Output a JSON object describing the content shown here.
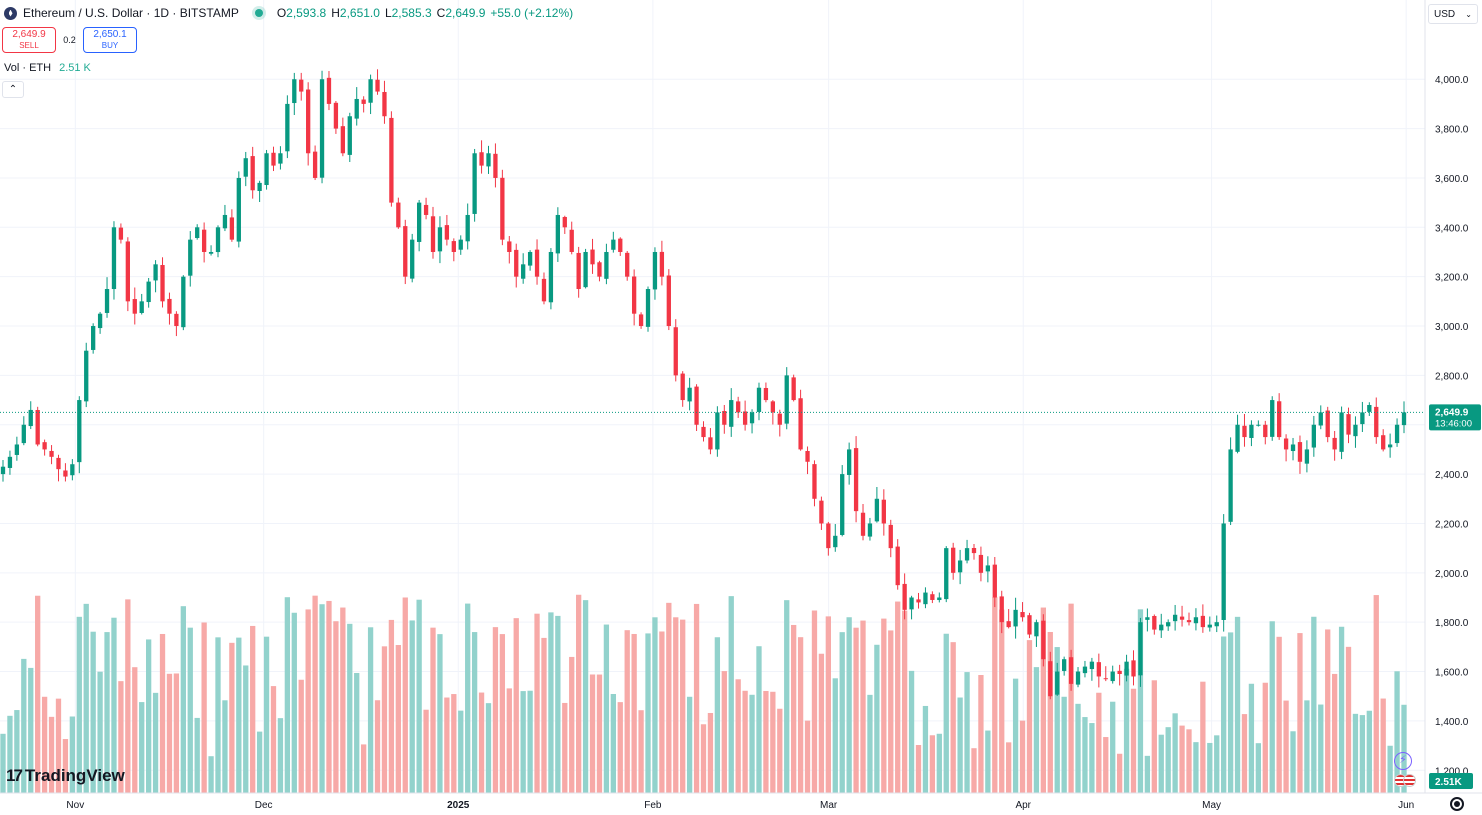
{
  "header": {
    "symbol": "Ethereum / U.S. Dollar · 1D · BITSTAMP",
    "ohlc": {
      "o_label": "O",
      "o": "2,593.8",
      "h_label": "H",
      "h": "2,651.0",
      "l_label": "L",
      "l": "2,585.3",
      "c_label": "C",
      "c": "2,649.9",
      "change": "+55.0 (+2.12%)"
    }
  },
  "trade": {
    "sell_price": "2,649.9",
    "sell_label": "SELL",
    "spread": "0.2",
    "buy_price": "2,650.1",
    "buy_label": "BUY"
  },
  "volume": {
    "label": "Vol · ETH",
    "value": "2.51 K",
    "badge": "2.51K"
  },
  "currency": "USD",
  "branding": "TradingView",
  "price_badge": {
    "price": "2,649.9",
    "countdown": "13:46:00"
  },
  "chart_data": {
    "type": "candlestick",
    "y_axis": {
      "ylim": [
        1120,
        4240
      ],
      "ticks": [
        1200,
        1400,
        1600,
        1800,
        2000,
        2200,
        2400,
        2600,
        2800,
        3000,
        3200,
        3400,
        3600,
        3800,
        4000
      ],
      "tick_labels": [
        "1,200.0",
        "1,400.0",
        "1,600.0",
        "1,800.0",
        "2,000.0",
        "2,200.0",
        "2,400.0",
        "2,600.0",
        "2,800.0",
        "3,000.0",
        "3,200.0",
        "3,400.0",
        "3,600.0",
        "3,800.0",
        "4,000.0"
      ],
      "position": "right"
    },
    "x_axis": {
      "start": "2024-10-20",
      "end": "2025-06-04",
      "labels": [
        {
          "date": "2024-11-01",
          "label": "Nov",
          "bold": false
        },
        {
          "date": "2024-12-01",
          "label": "Dec",
          "bold": false
        },
        {
          "date": "2025-01-01",
          "label": "2025",
          "bold": true
        },
        {
          "date": "2025-02-01",
          "label": "Feb",
          "bold": false
        },
        {
          "date": "2025-03-01",
          "label": "Mar",
          "bold": false
        },
        {
          "date": "2025-04-01",
          "label": "Apr",
          "bold": false
        },
        {
          "date": "2025-05-01",
          "label": "May",
          "bold": false
        },
        {
          "date": "2025-06-01",
          "label": "Jun",
          "bold": false
        }
      ]
    },
    "grid": true,
    "last_price": 2649.9,
    "colors": {
      "up": "#089981",
      "down": "#f23645",
      "vol_up": "#92d2cc",
      "vol_down": "#f7a9a7",
      "grid": "#f0f3fa"
    },
    "closes": [
      2430,
      2470,
      2520,
      2600,
      2660,
      2520,
      2500,
      2470,
      2420,
      2390,
      2440,
      2700,
      2900,
      3000,
      3050,
      3150,
      3400,
      3350,
      3100,
      3050,
      3100,
      3180,
      3250,
      3100,
      3050,
      3000,
      3200,
      3350,
      3400,
      3300,
      3300,
      3400,
      3450,
      3350,
      3600,
      3680,
      3550,
      3580,
      3700,
      3650,
      3700,
      3900,
      4000,
      3950,
      3700,
      3600,
      4000,
      3900,
      3800,
      3700,
      3850,
      3920,
      3900,
      4000,
      3950,
      3850,
      3500,
      3400,
      3200,
      3350,
      3500,
      3450,
      3300,
      3400,
      3350,
      3300,
      3350,
      3450,
      3700,
      3650,
      3700,
      3600,
      3350,
      3300,
      3200,
      3250,
      3300,
      3200,
      3100,
      3300,
      3450,
      3400,
      3300,
      3150,
      3300,
      3250,
      3200,
      3300,
      3350,
      3300,
      3200,
      3050,
      3000,
      3150,
      3300,
      3200,
      3000,
      2800,
      2700,
      2750,
      2600,
      2550,
      2500,
      2650,
      2600,
      2700,
      2650,
      2600,
      2650,
      2750,
      2700,
      2650,
      2600,
      2800,
      2700,
      2500,
      2450,
      2300,
      2200,
      2100,
      2150,
      2400,
      2500,
      2250,
      2150,
      2200,
      2300,
      2200,
      2100,
      1950,
      1850,
      1900,
      1880,
      1920,
      1890,
      1900,
      2100,
      2000,
      2050,
      2100,
      2080,
      2000,
      2030,
      1900,
      1800,
      1780,
      1850,
      1820,
      1750,
      1800,
      1650,
      1500,
      1600,
      1650,
      1550,
      1600,
      1620,
      1640,
      1580,
      1570,
      1600,
      1590,
      1640,
      1580,
      1800,
      1820,
      1770,
      1790,
      1800,
      1830,
      1810,
      1800,
      1820,
      1780,
      1790,
      1800,
      2200,
      2500,
      2600,
      2550,
      2600,
      2600,
      2550,
      2700,
      2550,
      2500,
      2520,
      2450,
      2500,
      2600,
      2650,
      2550,
      2500,
      2650,
      2560,
      2600,
      2650,
      2680,
      2550,
      2500,
      2520,
      2600,
      2650
    ]
  }
}
